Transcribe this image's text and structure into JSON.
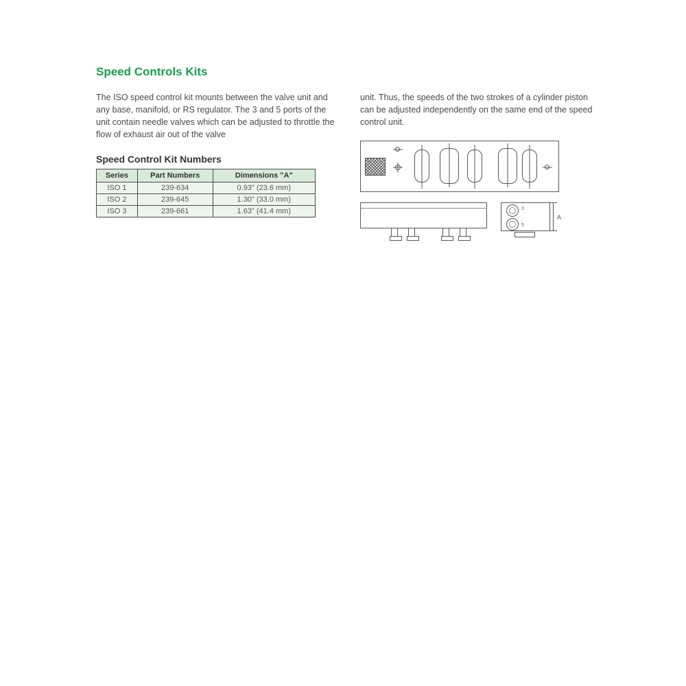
{
  "title": "Speed Controls Kits",
  "paragraph_left": "The ISO speed control kit mounts between the valve unit and any base, manifold, or RS regulator. The 3 and 5 ports of the unit contain needle valves which can be adjusted to throttle the flow of exhaust air out of the valve",
  "paragraph_right": "unit. Thus, the speeds of the two strokes of a cylinder piston can be adjusted independently on the same end of the speed control unit.",
  "table_title": "Speed Control Kit Numbers",
  "table": {
    "columns": [
      "Series",
      "Part Numbers",
      "Dimensions \"A\""
    ],
    "rows": [
      [
        "ISO 1",
        "239-634",
        "0.93\" (23.6 mm)"
      ],
      [
        "ISO 2",
        "239-645",
        "1.30\" (33.0 mm)"
      ],
      [
        "ISO 3",
        "239-661",
        "1.63\" (41.4 mm)"
      ]
    ]
  },
  "dim_a_label": "A",
  "port3": "3",
  "port5": "5",
  "colors": {
    "title_green": "#1a9e4a",
    "body_text": "#4a4a4a",
    "table_header_bg": "#d9ead9",
    "table_cell_bg": "#eef5ee",
    "table_border": "#4a4a4a",
    "diagram_line": "#555555"
  }
}
